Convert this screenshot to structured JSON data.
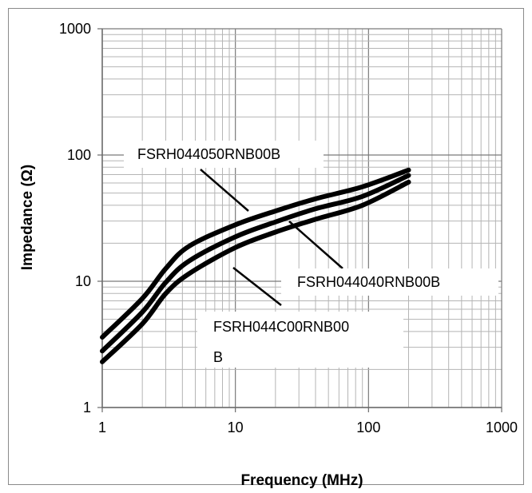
{
  "chart_data": {
    "type": "line",
    "xlabel": "Frequency (MHz)",
    "ylabel": "Impedance (Ω)",
    "xscale": "log",
    "yscale": "log",
    "xlim": [
      1,
      1000
    ],
    "ylim": [
      1,
      1000
    ],
    "grid": true,
    "x_ticks": [
      1,
      10,
      100,
      1000
    ],
    "y_ticks": [
      1,
      10,
      100,
      1000
    ],
    "x_tick_labels": [
      "1",
      "10",
      "100",
      "1000"
    ],
    "y_tick_labels": [
      "1",
      "10",
      "100",
      "1000"
    ],
    "series": [
      {
        "name": "FSRH044050RNB00B",
        "color": "#000000",
        "points": [
          [
            1,
            3.6
          ],
          [
            2,
            7.3
          ],
          [
            3,
            12.6
          ],
          [
            4.5,
            19
          ],
          [
            10,
            28
          ],
          [
            20,
            36
          ],
          [
            40,
            45
          ],
          [
            90,
            56
          ],
          [
            200,
            76
          ]
        ]
      },
      {
        "name": "FSRH044040RNB00B",
        "color": "#000000",
        "points": [
          [
            1,
            2.8
          ],
          [
            2,
            5.7
          ],
          [
            3,
            9.8
          ],
          [
            4.5,
            14.5
          ],
          [
            10,
            22.5
          ],
          [
            20,
            29.5
          ],
          [
            40,
            37.5
          ],
          [
            90,
            47
          ],
          [
            200,
            69
          ]
        ]
      },
      {
        "name": "FSRH044C00RNB00B",
        "color": "#000000",
        "points": [
          [
            1,
            2.3
          ],
          [
            2,
            4.6
          ],
          [
            3,
            8.0
          ],
          [
            4.5,
            11.5
          ],
          [
            10,
            18.5
          ],
          [
            20,
            24.5
          ],
          [
            40,
            31
          ],
          [
            90,
            40
          ],
          [
            200,
            61
          ]
        ]
      }
    ],
    "annotations": [
      {
        "line1": "FSRH044050RNB00B",
        "line2": ""
      },
      {
        "line1": "FSRH044040RNB00B",
        "line2": ""
      },
      {
        "line1": "FSRH044C00RNB00",
        "line2": "B"
      }
    ]
  }
}
